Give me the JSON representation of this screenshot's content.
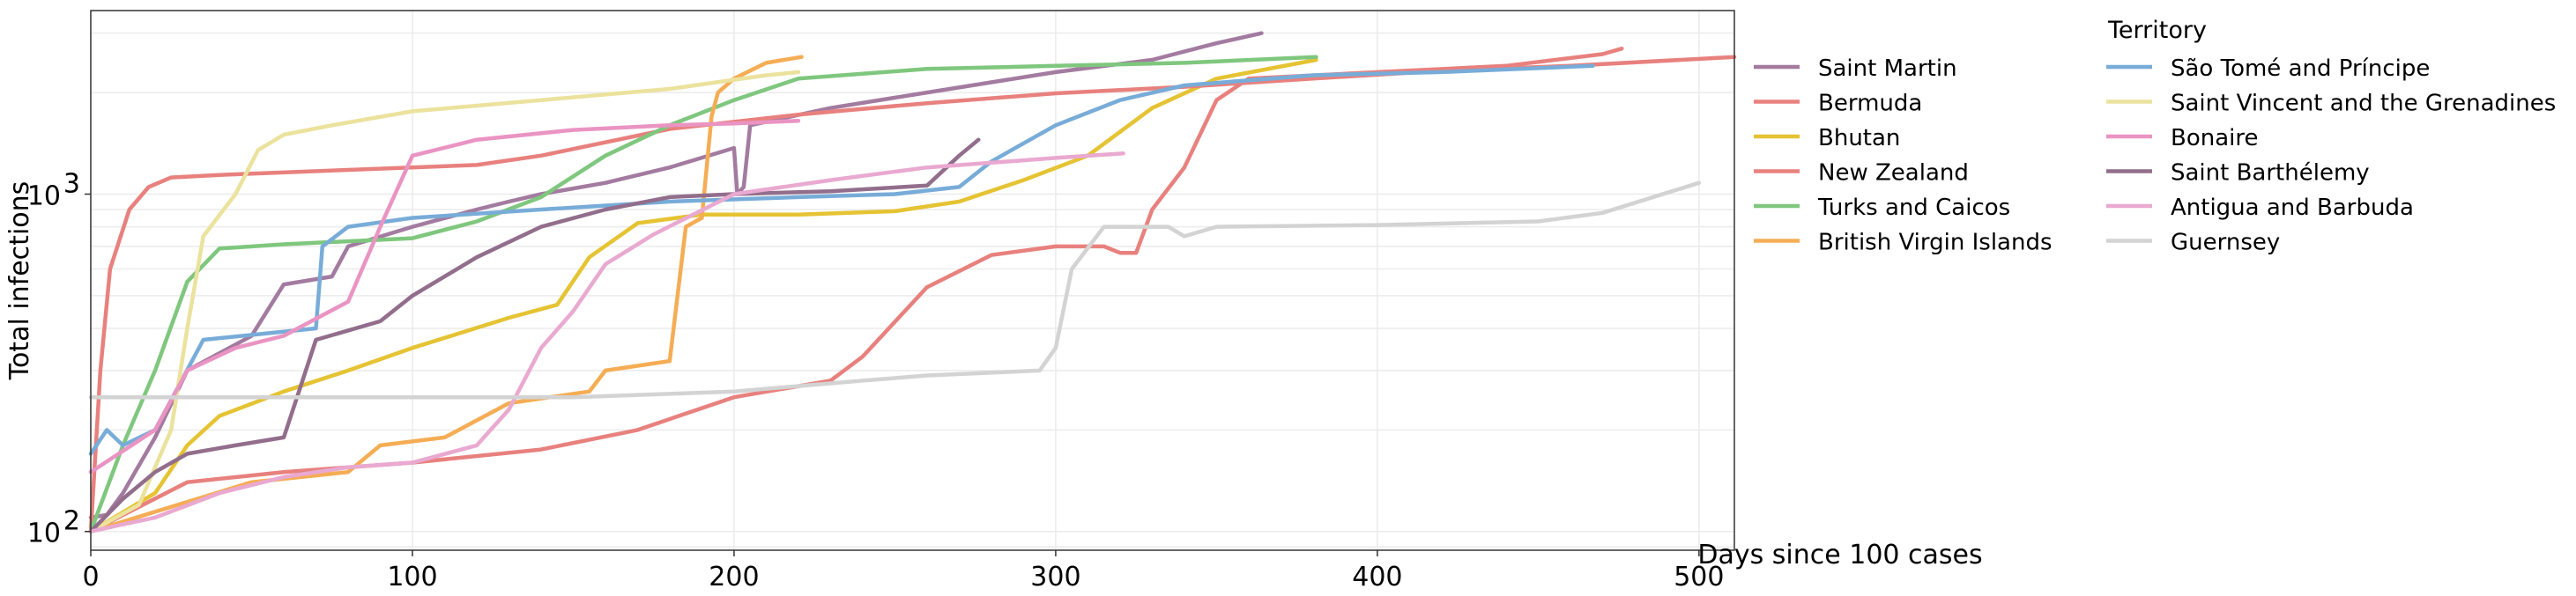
{
  "chart_data": {
    "type": "line",
    "xlabel": "Days since 100 cases",
    "ylabel": "Total infections",
    "xlim": [
      0,
      511
    ],
    "ylim": [
      88,
      3500
    ],
    "yscale": "log",
    "grid": true,
    "x_ticks": [
      0,
      100,
      200,
      300,
      400,
      500
    ],
    "y_ticks": [
      {
        "value": 100,
        "base": "10",
        "exp": "2"
      },
      {
        "value": 1000,
        "base": "10",
        "exp": "3"
      }
    ],
    "legend": {
      "title": "Territory",
      "placement": "right",
      "columns": 2
    },
    "series": [
      {
        "name": "Saint Martin",
        "color": "#a37ba0",
        "points": [
          [
            0,
            110
          ],
          [
            5,
            112
          ],
          [
            10,
            130
          ],
          [
            20,
            190
          ],
          [
            30,
            300
          ],
          [
            50,
            380
          ],
          [
            60,
            540
          ],
          [
            75,
            570
          ],
          [
            80,
            700
          ],
          [
            100,
            800
          ],
          [
            120,
            900
          ],
          [
            130,
            950
          ],
          [
            140,
            1000
          ],
          [
            160,
            1080
          ],
          [
            180,
            1200
          ],
          [
            200,
            1370
          ],
          [
            201,
            1000
          ],
          [
            203,
            1050
          ],
          [
            205,
            1600
          ],
          [
            230,
            1800
          ],
          [
            260,
            2000
          ],
          [
            300,
            2300
          ],
          [
            330,
            2500
          ],
          [
            350,
            2800
          ],
          [
            364,
            3000
          ]
        ]
      },
      {
        "name": "Bermuda",
        "color": "#e8817e",
        "points": [
          [
            0,
            100
          ],
          [
            30,
            140
          ],
          [
            60,
            150
          ],
          [
            100,
            160
          ],
          [
            140,
            175
          ],
          [
            170,
            200
          ],
          [
            200,
            250
          ],
          [
            230,
            280
          ],
          [
            240,
            330
          ],
          [
            260,
            530
          ],
          [
            280,
            660
          ],
          [
            300,
            700
          ],
          [
            315,
            700
          ],
          [
            320,
            670
          ],
          [
            325,
            670
          ],
          [
            330,
            900
          ],
          [
            340,
            1200
          ],
          [
            350,
            1900
          ],
          [
            360,
            2200
          ],
          [
            400,
            2300
          ],
          [
            440,
            2400
          ],
          [
            470,
            2600
          ],
          [
            476,
            2700
          ]
        ]
      },
      {
        "name": "Bhutan",
        "color": "#e5c333",
        "points": [
          [
            0,
            100
          ],
          [
            20,
            130
          ],
          [
            30,
            180
          ],
          [
            40,
            220
          ],
          [
            60,
            260
          ],
          [
            80,
            300
          ],
          [
            100,
            350
          ],
          [
            130,
            430
          ],
          [
            145,
            470
          ],
          [
            155,
            650
          ],
          [
            170,
            820
          ],
          [
            190,
            870
          ],
          [
            220,
            870
          ],
          [
            250,
            890
          ],
          [
            270,
            950
          ],
          [
            290,
            1100
          ],
          [
            310,
            1300
          ],
          [
            330,
            1800
          ],
          [
            350,
            2200
          ],
          [
            381,
            2500
          ]
        ]
      },
      {
        "name": "New Zealand",
        "color": "#e8817e",
        "points": [
          [
            0,
            100
          ],
          [
            3,
            300
          ],
          [
            6,
            600
          ],
          [
            12,
            900
          ],
          [
            18,
            1050
          ],
          [
            25,
            1120
          ],
          [
            40,
            1140
          ],
          [
            80,
            1180
          ],
          [
            120,
            1220
          ],
          [
            140,
            1300
          ],
          [
            180,
            1560
          ],
          [
            220,
            1720
          ],
          [
            260,
            1860
          ],
          [
            300,
            1990
          ],
          [
            340,
            2080
          ],
          [
            380,
            2200
          ],
          [
            420,
            2320
          ],
          [
            460,
            2400
          ],
          [
            511,
            2550
          ]
        ]
      },
      {
        "name": "Turks and Caicos",
        "color": "#7fc77e",
        "points": [
          [
            0,
            100
          ],
          [
            10,
            180
          ],
          [
            20,
            300
          ],
          [
            30,
            550
          ],
          [
            40,
            690
          ],
          [
            60,
            710
          ],
          [
            100,
            740
          ],
          [
            120,
            830
          ],
          [
            140,
            980
          ],
          [
            160,
            1300
          ],
          [
            180,
            1600
          ],
          [
            200,
            1900
          ],
          [
            220,
            2200
          ],
          [
            260,
            2350
          ],
          [
            300,
            2400
          ],
          [
            340,
            2450
          ],
          [
            381,
            2550
          ]
        ]
      },
      {
        "name": "British Virgin Islands",
        "color": "#f5ad55",
        "points": [
          [
            0,
            100
          ],
          [
            50,
            140
          ],
          [
            80,
            150
          ],
          [
            90,
            180
          ],
          [
            110,
            190
          ],
          [
            130,
            240
          ],
          [
            155,
            260
          ],
          [
            160,
            300
          ],
          [
            180,
            320
          ],
          [
            185,
            800
          ],
          [
            190,
            850
          ],
          [
            193,
            1700
          ],
          [
            195,
            2000
          ],
          [
            200,
            2200
          ],
          [
            210,
            2450
          ],
          [
            221,
            2550
          ]
        ]
      },
      {
        "name": "São Tomé and Príncipe",
        "color": "#78acd8",
        "points": [
          [
            0,
            170
          ],
          [
            5,
            200
          ],
          [
            10,
            180
          ],
          [
            20,
            200
          ],
          [
            35,
            370
          ],
          [
            70,
            400
          ],
          [
            72,
            700
          ],
          [
            80,
            800
          ],
          [
            100,
            850
          ],
          [
            140,
            900
          ],
          [
            180,
            950
          ],
          [
            220,
            980
          ],
          [
            250,
            1000
          ],
          [
            270,
            1050
          ],
          [
            280,
            1250
          ],
          [
            300,
            1600
          ],
          [
            320,
            1900
          ],
          [
            340,
            2100
          ],
          [
            380,
            2250
          ],
          [
            420,
            2300
          ],
          [
            467,
            2400
          ]
        ]
      },
      {
        "name": "Saint Vincent and the Grenadines",
        "color": "#ebe29d",
        "points": [
          [
            0,
            100
          ],
          [
            15,
            120
          ],
          [
            25,
            200
          ],
          [
            30,
            400
          ],
          [
            35,
            750
          ],
          [
            45,
            1000
          ],
          [
            52,
            1350
          ],
          [
            60,
            1500
          ],
          [
            75,
            1600
          ],
          [
            100,
            1760
          ],
          [
            140,
            1900
          ],
          [
            180,
            2050
          ],
          [
            210,
            2250
          ],
          [
            220,
            2300
          ]
        ]
      },
      {
        "name": "Bonaire",
        "color": "#ea94c3",
        "points": [
          [
            0,
            150
          ],
          [
            20,
            200
          ],
          [
            30,
            300
          ],
          [
            45,
            350
          ],
          [
            60,
            380
          ],
          [
            80,
            480
          ],
          [
            90,
            800
          ],
          [
            100,
            1300
          ],
          [
            120,
            1450
          ],
          [
            150,
            1550
          ],
          [
            180,
            1600
          ],
          [
            200,
            1620
          ],
          [
            220,
            1650
          ]
        ]
      },
      {
        "name": "Saint Barthélemy",
        "color": "#926e8c",
        "points": [
          [
            0,
            100
          ],
          [
            10,
            125
          ],
          [
            20,
            150
          ],
          [
            30,
            170
          ],
          [
            45,
            180
          ],
          [
            60,
            190
          ],
          [
            70,
            370
          ],
          [
            90,
            420
          ],
          [
            100,
            500
          ],
          [
            120,
            650
          ],
          [
            140,
            800
          ],
          [
            160,
            900
          ],
          [
            180,
            980
          ],
          [
            200,
            1000
          ],
          [
            230,
            1020
          ],
          [
            260,
            1060
          ],
          [
            270,
            1300
          ],
          [
            276,
            1450
          ]
        ]
      },
      {
        "name": "Antigua and Barbuda",
        "color": "#e9a9d0",
        "points": [
          [
            0,
            100
          ],
          [
            10,
            105
          ],
          [
            20,
            110
          ],
          [
            40,
            130
          ],
          [
            60,
            145
          ],
          [
            80,
            155
          ],
          [
            100,
            160
          ],
          [
            120,
            180
          ],
          [
            130,
            230
          ],
          [
            140,
            350
          ],
          [
            150,
            450
          ],
          [
            160,
            620
          ],
          [
            175,
            760
          ],
          [
            200,
            1000
          ],
          [
            230,
            1100
          ],
          [
            260,
            1200
          ],
          [
            300,
            1280
          ],
          [
            321,
            1320
          ]
        ]
      },
      {
        "name": "Guernsey",
        "color": "#d3d3d3",
        "points": [
          [
            0,
            250
          ],
          [
            50,
            250
          ],
          [
            100,
            250
          ],
          [
            150,
            250
          ],
          [
            200,
            260
          ],
          [
            240,
            280
          ],
          [
            260,
            290
          ],
          [
            295,
            300
          ],
          [
            300,
            350
          ],
          [
            305,
            600
          ],
          [
            315,
            800
          ],
          [
            335,
            800
          ],
          [
            340,
            750
          ],
          [
            350,
            800
          ],
          [
            400,
            810
          ],
          [
            450,
            830
          ],
          [
            470,
            880
          ],
          [
            500,
            1080
          ]
        ]
      }
    ]
  }
}
